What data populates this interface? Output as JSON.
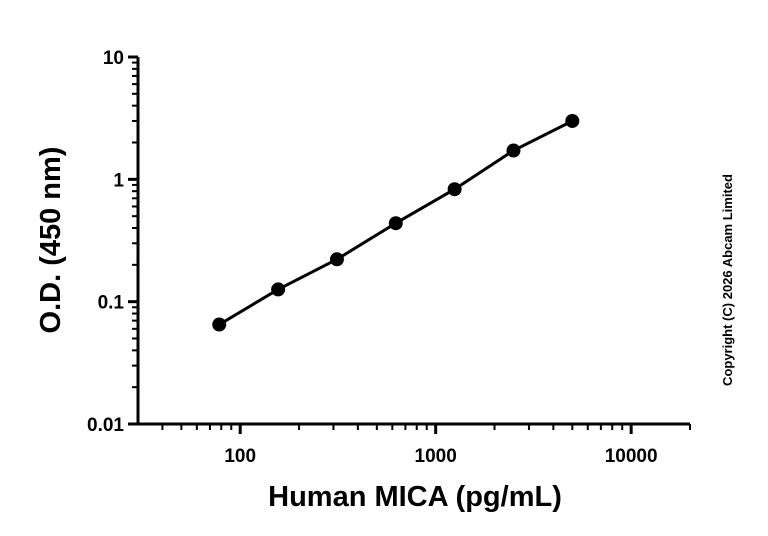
{
  "chart_data": {
    "type": "scatter",
    "xlabel": "Human MICA (pg/mL)",
    "ylabel": "O.D. (450 nm)",
    "x_scale": "log",
    "y_scale": "log",
    "xlim": [
      30,
      20000
    ],
    "ylim": [
      0.01,
      10
    ],
    "x_ticks": [
      100,
      1000,
      10000
    ],
    "x_tick_labels": [
      "100",
      "1000",
      "10000"
    ],
    "y_ticks": [
      0.01,
      0.1,
      1,
      10
    ],
    "y_tick_labels": [
      "0.01",
      "0.1",
      "1",
      "10"
    ],
    "grid": false,
    "legend": "none",
    "series": [
      {
        "x": [
          78.1,
          156.3,
          312.5,
          625,
          1250,
          2500,
          5000
        ],
        "y": [
          0.065,
          0.126,
          0.222,
          0.438,
          0.83,
          1.72,
          3.0
        ],
        "color": "#000000",
        "fit_line": true
      }
    ],
    "annotation": "Copyright (C) 2026 Abcam Limited"
  }
}
